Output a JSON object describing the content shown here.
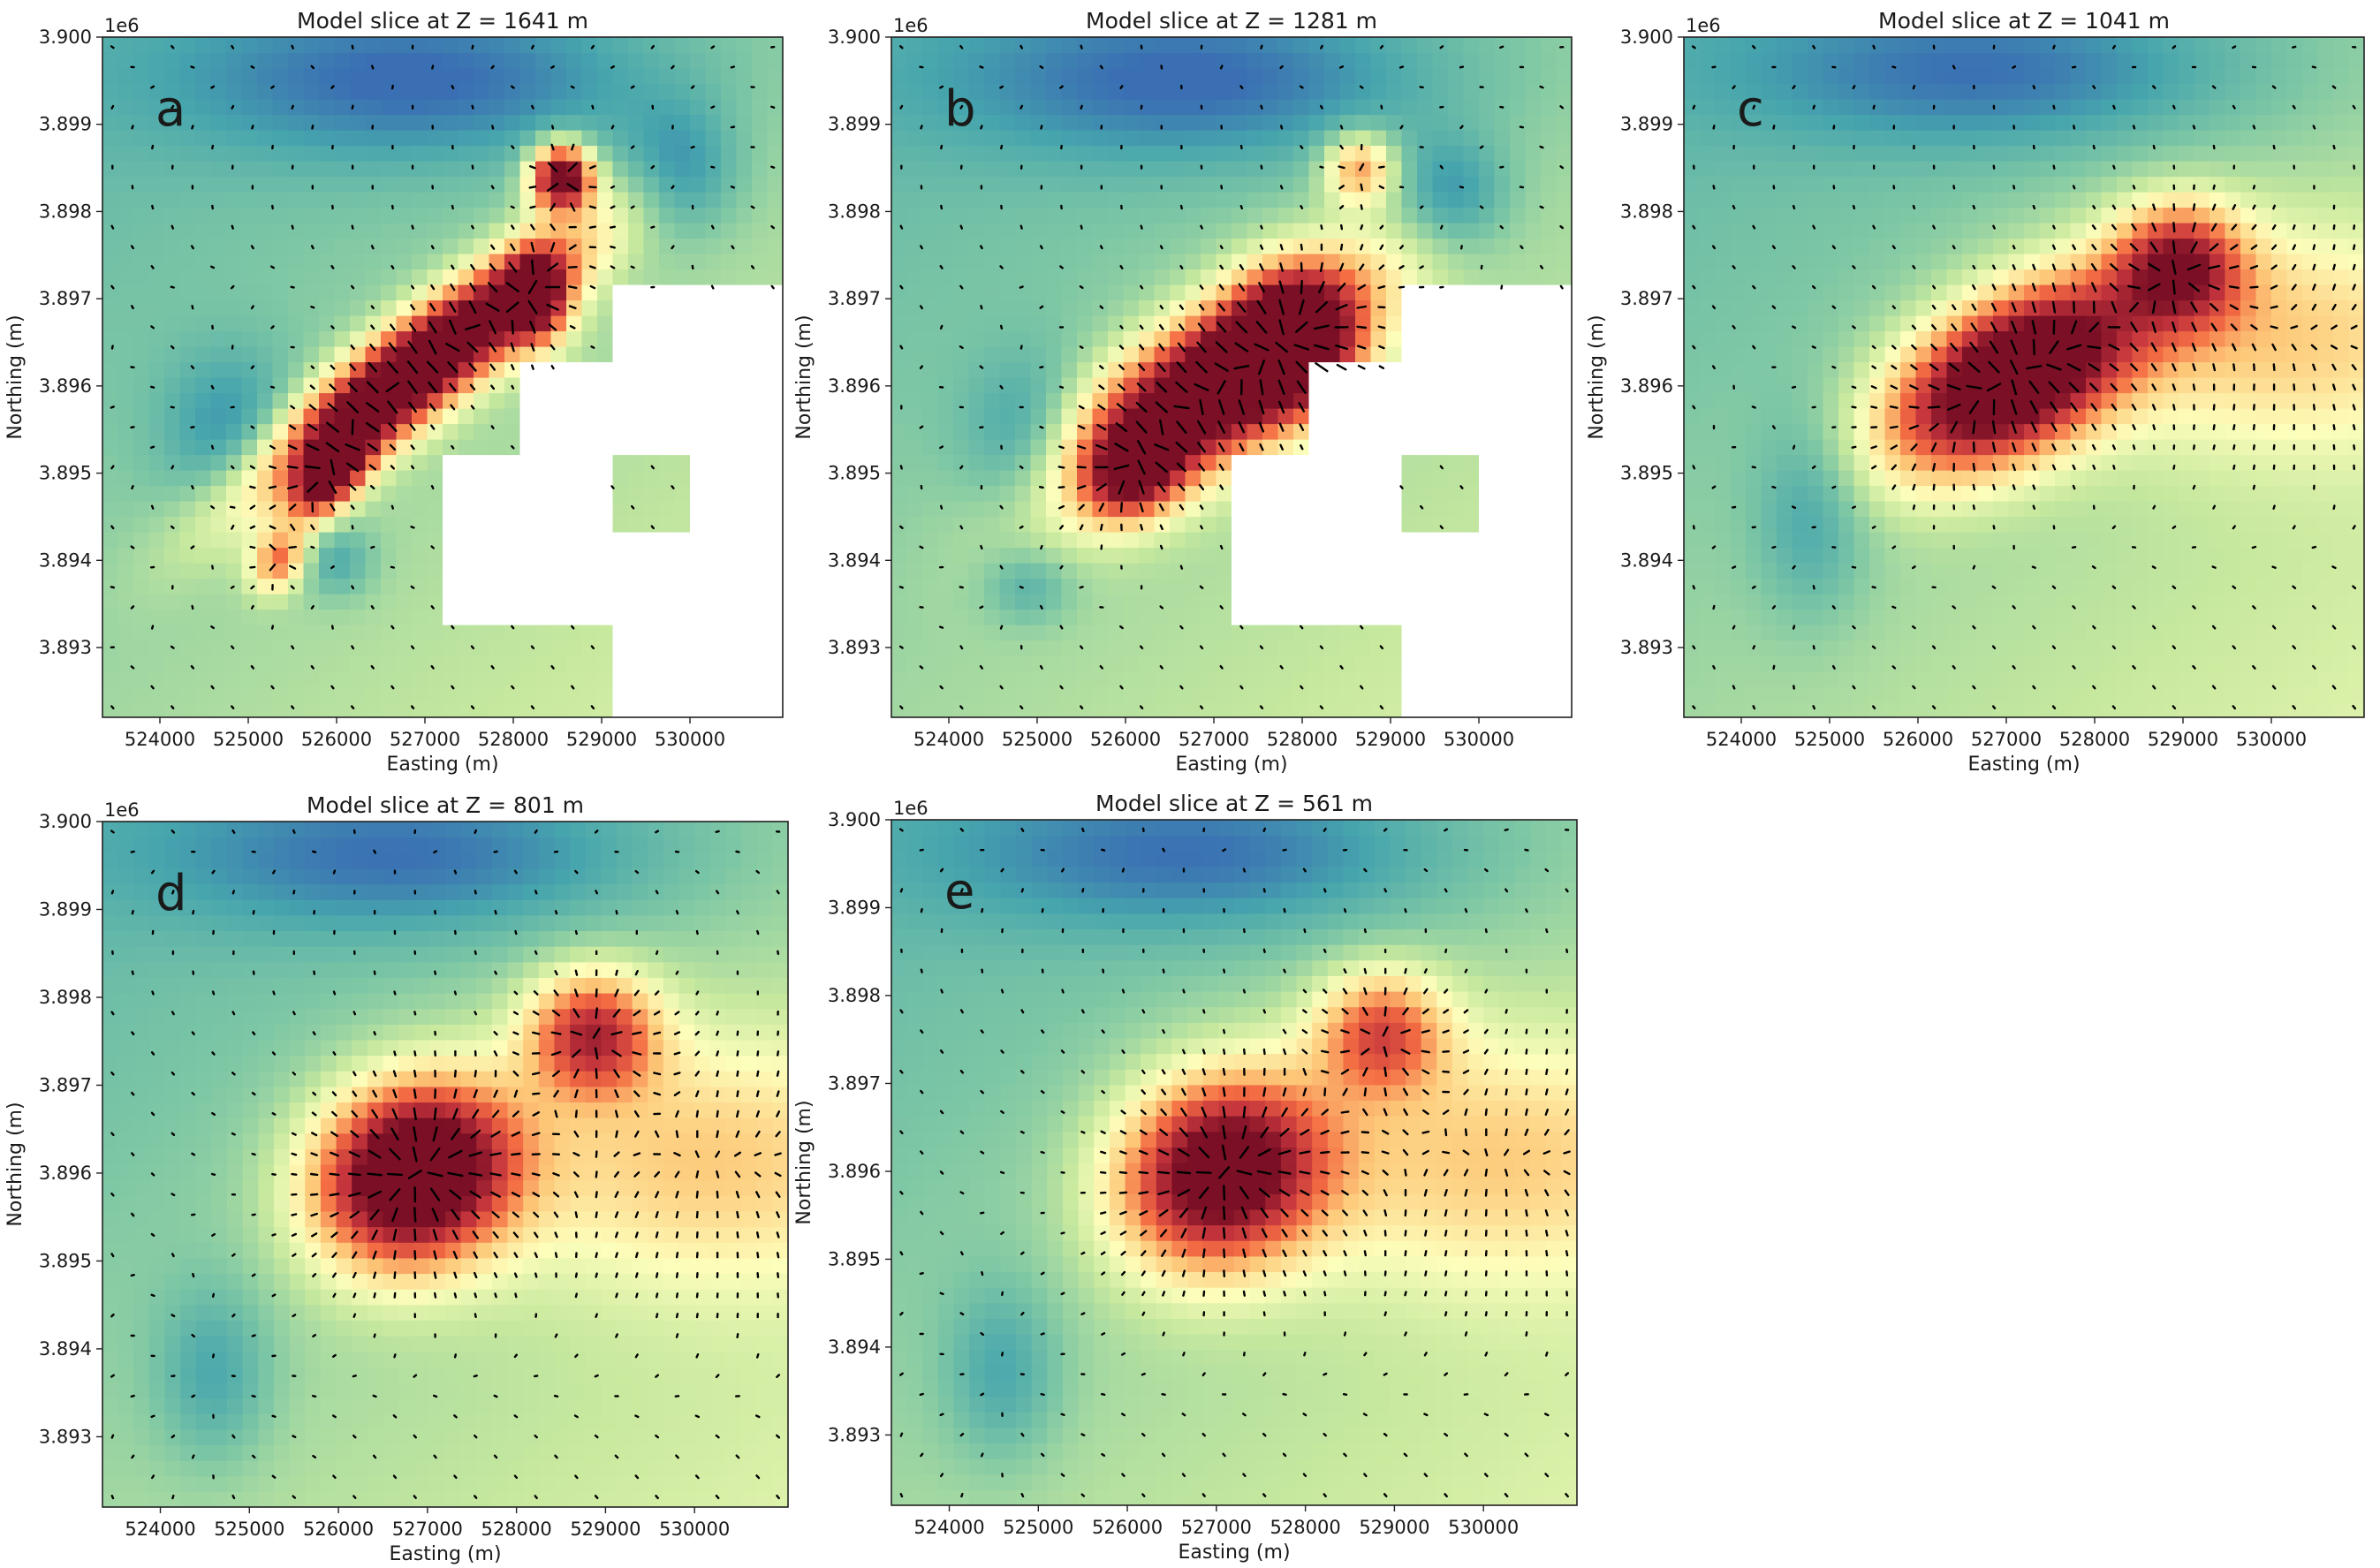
{
  "figure": {
    "description_of_panels": "Model slices with displacement vectors"
  },
  "chart_data": [
    {
      "type": "heatmap",
      "panel_label": "a",
      "title": "Model slice at Z = 1641 m",
      "xlabel": "Easting (m)",
      "ylabel": "Northing (m)",
      "xticks": [
        "524000",
        "525000",
        "526000",
        "527000",
        "528000",
        "529000",
        "530000"
      ],
      "xtick_values": [
        524000,
        525000,
        526000,
        527000,
        528000,
        529000,
        530000
      ],
      "yticks": [
        "3.893",
        "3.894",
        "3.895",
        "3.896",
        "3.897",
        "3.898",
        "3.899",
        "3.900"
      ],
      "ytick_values": [
        3.893,
        3.894,
        3.895,
        3.896,
        3.897,
        3.898,
        3.899,
        3.9
      ],
      "y_offset_label": "1e6",
      "xlim": [
        523350,
        531050
      ],
      "ylim": [
        3.8922,
        3.9
      ],
      "anomalies": [
        {
          "x": 526900,
          "y": 3.8962,
          "sx": 1500,
          "sy": 350,
          "rot": 38,
          "amp": 1.35
        },
        {
          "x": 525950,
          "y": 3.895,
          "sx": 420,
          "sy": 220,
          "rot": 55,
          "amp": 0.9
        },
        {
          "x": 525350,
          "y": 3.894,
          "sx": 260,
          "sy": 200,
          "rot": 60,
          "amp": 0.55
        },
        {
          "x": 528550,
          "y": 3.8984,
          "sx": 240,
          "sy": 260,
          "rot": 0,
          "amp": 1.2
        },
        {
          "x": 528250,
          "y": 3.897,
          "sx": 260,
          "sy": 380,
          "rot": 0,
          "amp": 0.75
        }
      ],
      "lows": [
        {
          "x": 527000,
          "y": 3.8995,
          "sx": 1900,
          "sy": 650,
          "amp": 0.55
        },
        {
          "x": 524800,
          "y": 3.8955,
          "sx": 550,
          "sy": 650,
          "amp": 0.4
        },
        {
          "x": 529900,
          "y": 3.8985,
          "sx": 450,
          "sy": 500,
          "amp": 0.45
        },
        {
          "x": 526000,
          "y": 3.894,
          "sx": 300,
          "sy": 300,
          "amp": 0.35
        }
      ],
      "masked_regions": [
        {
          "x0": 529050,
          "x1": 531050,
          "y0": 3.8952,
          "y1": 3.8971
        },
        {
          "x0": 527150,
          "x1": 531050,
          "y0": 3.8922,
          "y1": 3.8952
        },
        {
          "x0": 528100,
          "x1": 529050,
          "y0": 3.8943,
          "y1": 3.8962
        }
      ],
      "unmasked_patches": [
        {
          "x0": 529050,
          "x1": 530000,
          "y0": 3.8943,
          "y1": 3.8952
        },
        {
          "x0": 527150,
          "x1": 528100,
          "y0": 3.8922,
          "y1": 3.8933
        },
        {
          "x0": 528100,
          "x1": 529050,
          "y0": 3.8922,
          "y1": 3.8933
        }
      ]
    },
    {
      "type": "heatmap",
      "panel_label": "b",
      "title": "Model slice at Z = 1281 m",
      "xlabel": "Easting (m)",
      "ylabel": "Northing (m)",
      "xticks": [
        "524000",
        "525000",
        "526000",
        "527000",
        "528000",
        "529000",
        "530000"
      ],
      "xtick_values": [
        524000,
        525000,
        526000,
        527000,
        528000,
        529000,
        530000
      ],
      "yticks": [
        "3.893",
        "3.894",
        "3.895",
        "3.896",
        "3.897",
        "3.898",
        "3.899",
        "3.900"
      ],
      "ytick_values": [
        3.893,
        3.894,
        3.895,
        3.896,
        3.897,
        3.898,
        3.899,
        3.9
      ],
      "y_offset_label": "1e6",
      "xlim": [
        523350,
        531050
      ],
      "ylim": [
        3.8922,
        3.9
      ],
      "anomalies": [
        {
          "x": 527000,
          "y": 3.896,
          "sx": 1350,
          "sy": 520,
          "rot": 35,
          "amp": 1.35
        },
        {
          "x": 527900,
          "y": 3.8965,
          "sx": 450,
          "sy": 550,
          "rot": 0,
          "amp": 0.8
        },
        {
          "x": 528650,
          "y": 3.8985,
          "sx": 280,
          "sy": 280,
          "rot": 0,
          "amp": 0.55
        },
        {
          "x": 526100,
          "y": 3.895,
          "sx": 380,
          "sy": 320,
          "rot": 40,
          "amp": 0.6
        }
      ],
      "lows": [
        {
          "x": 526800,
          "y": 3.8995,
          "sx": 1900,
          "sy": 650,
          "amp": 0.55
        },
        {
          "x": 524900,
          "y": 3.8953,
          "sx": 500,
          "sy": 700,
          "amp": 0.4
        },
        {
          "x": 529700,
          "y": 3.8982,
          "sx": 450,
          "sy": 450,
          "amp": 0.45
        },
        {
          "x": 524900,
          "y": 3.8937,
          "sx": 350,
          "sy": 300,
          "amp": 0.3
        }
      ],
      "masked_regions": [
        {
          "x0": 529050,
          "x1": 531050,
          "y0": 3.8952,
          "y1": 3.8971
        },
        {
          "x0": 527150,
          "x1": 531050,
          "y0": 3.8922,
          "y1": 3.8952
        },
        {
          "x0": 528100,
          "x1": 529050,
          "y0": 3.8943,
          "y1": 3.8962
        }
      ],
      "unmasked_patches": [
        {
          "x0": 529050,
          "x1": 530000,
          "y0": 3.8943,
          "y1": 3.8952
        },
        {
          "x0": 527150,
          "x1": 528100,
          "y0": 3.8922,
          "y1": 3.8933
        },
        {
          "x0": 528100,
          "x1": 529050,
          "y0": 3.8922,
          "y1": 3.8933
        }
      ]
    },
    {
      "type": "heatmap",
      "panel_label": "c",
      "title": "Model slice at Z = 1041 m",
      "xlabel": "Easting (m)",
      "ylabel": "Northing (m)",
      "xticks": [
        "524000",
        "525000",
        "526000",
        "527000",
        "528000",
        "529000",
        "530000"
      ],
      "xtick_values": [
        524000,
        525000,
        526000,
        527000,
        528000,
        529000,
        530000
      ],
      "yticks": [
        "3.893",
        "3.894",
        "3.895",
        "3.896",
        "3.897",
        "3.898",
        "3.899",
        "3.900"
      ],
      "ytick_values": [
        3.893,
        3.894,
        3.895,
        3.896,
        3.897,
        3.898,
        3.899,
        3.9
      ],
      "y_offset_label": "1e6",
      "xlim": [
        523350,
        531050
      ],
      "ylim": [
        3.8922,
        3.9
      ],
      "anomalies": [
        {
          "x": 527050,
          "y": 3.8961,
          "sx": 1050,
          "sy": 580,
          "rot": 30,
          "amp": 1.3
        },
        {
          "x": 528950,
          "y": 3.8974,
          "sx": 500,
          "sy": 480,
          "rot": 0,
          "amp": 0.75
        },
        {
          "x": 530000,
          "y": 3.8966,
          "sx": 1600,
          "sy": 900,
          "rot": 0,
          "amp": 0.35
        }
      ],
      "lows": [
        {
          "x": 526800,
          "y": 3.8996,
          "sx": 1900,
          "sy": 600,
          "amp": 0.5
        },
        {
          "x": 524800,
          "y": 3.8945,
          "sx": 450,
          "sy": 800,
          "amp": 0.35
        }
      ],
      "masked_regions": [],
      "unmasked_patches": []
    },
    {
      "type": "heatmap",
      "panel_label": "d",
      "title": "Model slice at Z = 801 m",
      "xlabel": "Easting (m)",
      "ylabel": "Northing (m)",
      "xticks": [
        "524000",
        "525000",
        "526000",
        "527000",
        "528000",
        "529000",
        "530000"
      ],
      "xtick_values": [
        524000,
        525000,
        526000,
        527000,
        528000,
        529000,
        530000
      ],
      "yticks": [
        "3.893",
        "3.894",
        "3.895",
        "3.896",
        "3.897",
        "3.898",
        "3.899",
        "3.900"
      ],
      "ytick_values": [
        3.893,
        3.894,
        3.895,
        3.896,
        3.897,
        3.898,
        3.899,
        3.9
      ],
      "y_offset_label": "1e6",
      "xlim": [
        523350,
        531050
      ],
      "ylim": [
        3.8922,
        3.9
      ],
      "anomalies": [
        {
          "x": 526850,
          "y": 3.896,
          "sx": 780,
          "sy": 680,
          "rot": 30,
          "amp": 1.3
        },
        {
          "x": 528850,
          "y": 3.8976,
          "sx": 500,
          "sy": 480,
          "rot": 0,
          "amp": 0.75
        },
        {
          "x": 530000,
          "y": 3.8962,
          "sx": 1700,
          "sy": 1000,
          "rot": 0,
          "amp": 0.35
        }
      ],
      "lows": [
        {
          "x": 526800,
          "y": 3.8996,
          "sx": 1900,
          "sy": 600,
          "amp": 0.5
        },
        {
          "x": 524600,
          "y": 3.8937,
          "sx": 450,
          "sy": 700,
          "amp": 0.35
        }
      ],
      "masked_regions": [],
      "unmasked_patches": []
    },
    {
      "type": "heatmap",
      "panel_label": "e",
      "title": "Model slice at Z = 561 m",
      "xlabel": "Easting (m)",
      "ylabel": "Northing (m)",
      "xticks": [
        "524000",
        "525000",
        "526000",
        "527000",
        "528000",
        "529000",
        "530000"
      ],
      "xtick_values": [
        524000,
        525000,
        526000,
        527000,
        528000,
        529000,
        530000
      ],
      "yticks": [
        "3.893",
        "3.894",
        "3.895",
        "3.896",
        "3.897",
        "3.898",
        "3.899",
        "3.900"
      ],
      "ytick_values": [
        3.893,
        3.894,
        3.895,
        3.896,
        3.897,
        3.898,
        3.899,
        3.9
      ],
      "y_offset_label": "1e6",
      "xlim": [
        523350,
        531050
      ],
      "ylim": [
        3.8922,
        3.9
      ],
      "anomalies": [
        {
          "x": 527050,
          "y": 3.896,
          "sx": 820,
          "sy": 720,
          "rot": 30,
          "amp": 1.1
        },
        {
          "x": 528850,
          "y": 3.8976,
          "sx": 500,
          "sy": 480,
          "rot": 0,
          "amp": 0.6
        },
        {
          "x": 530000,
          "y": 3.8962,
          "sx": 1700,
          "sy": 1000,
          "rot": 0,
          "amp": 0.35
        }
      ],
      "lows": [
        {
          "x": 526800,
          "y": 3.8996,
          "sx": 1900,
          "sy": 600,
          "amp": 0.5
        },
        {
          "x": 524600,
          "y": 3.8937,
          "sx": 450,
          "sy": 700,
          "amp": 0.35
        }
      ],
      "masked_regions": [],
      "unmasked_patches": []
    }
  ],
  "colors": {
    "colormap": "Spectral_r",
    "low": "#3a6fb3",
    "background": "#46a5ad",
    "mid": "#fdfebb",
    "high": "#f46d43",
    "peak": "#7a0f25",
    "masked": "#ffffff",
    "vector": "#000000"
  }
}
